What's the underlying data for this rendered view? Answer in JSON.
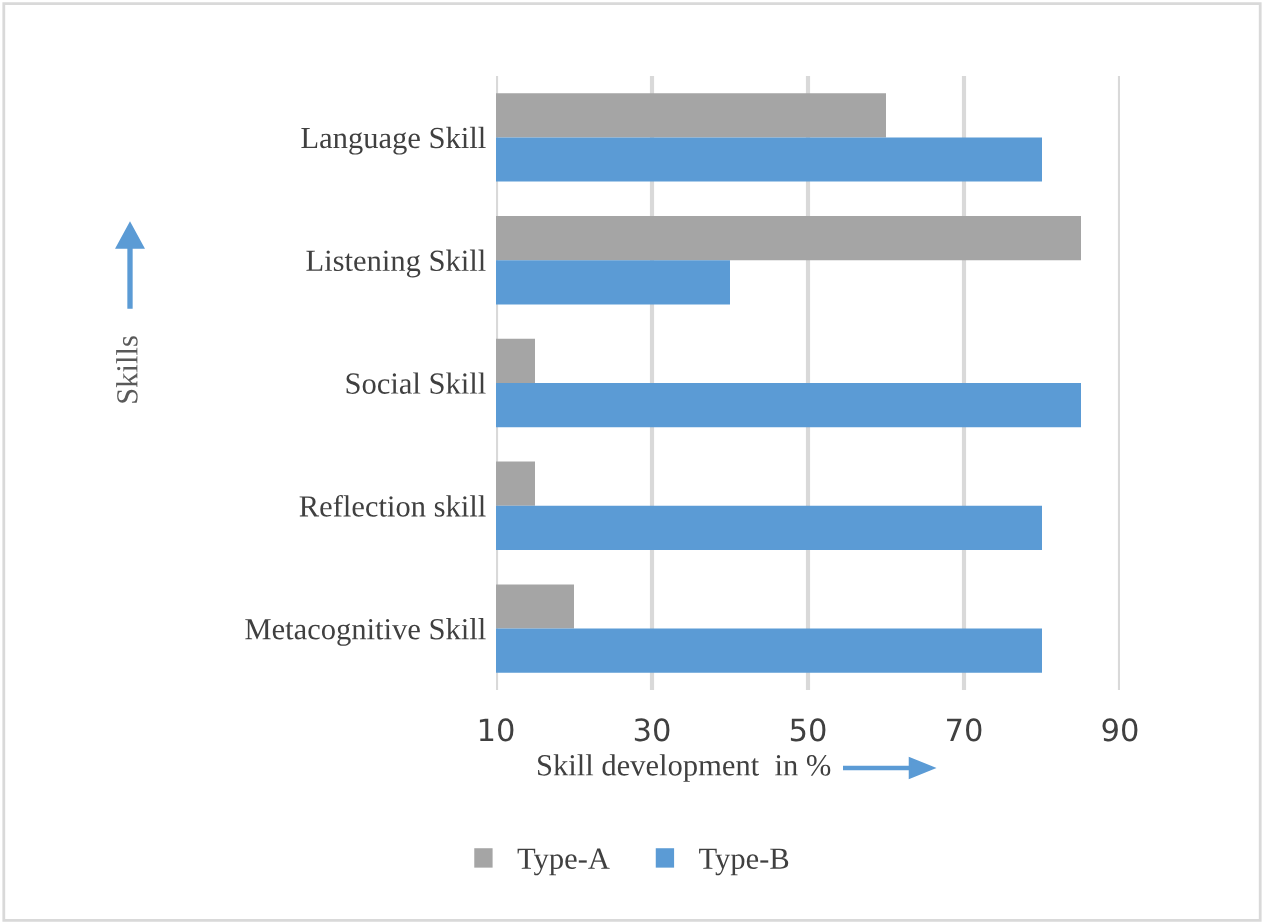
{
  "chart_data": {
    "type": "bar",
    "orientation": "horizontal",
    "categories": [
      "Language Skill",
      "Listening Skill",
      "Social Skill",
      "Reflection skill",
      "Metacognitive Skill"
    ],
    "series": [
      {
        "name": "Type-A",
        "color": "#a5a5a5",
        "values": [
          60,
          85,
          15,
          15,
          20
        ]
      },
      {
        "name": "Type-B",
        "color": "#5b9bd5",
        "values": [
          80,
          40,
          85,
          80,
          80
        ]
      }
    ],
    "xlabel": "Skill development  in %",
    "ylabel": "Skills",
    "xlim": [
      10,
      90
    ],
    "xticks": [
      10,
      30,
      50,
      70,
      90
    ],
    "grid": "x",
    "legend": "bottom"
  }
}
